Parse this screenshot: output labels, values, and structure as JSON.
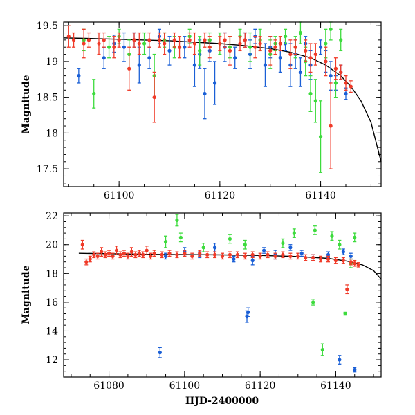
{
  "colors": {
    "blue": "#1a5fd6",
    "green": "#3ddb3d",
    "red": "#f03a28",
    "model": "#000000"
  },
  "chart_data": [
    {
      "type": "scatter",
      "panel": "top",
      "xlabel": "",
      "ylabel": "Magnitude",
      "xlim": [
        61089,
        61152
      ],
      "ylim": [
        19.55,
        17.25
      ],
      "y_inverted": true,
      "xticks": [
        61100,
        61120,
        61140
      ],
      "yticks": [
        17.5,
        18,
        18.5,
        19,
        19.5
      ],
      "model_curve": {
        "name": "model",
        "x": [
          61089,
          61095,
          61100,
          61105,
          61110,
          61115,
          61120,
          61125,
          61130,
          61134,
          61138,
          61141,
          61144,
          61146,
          61148,
          61150,
          61152
        ],
        "y": [
          19.33,
          19.32,
          19.31,
          19.3,
          19.29,
          19.27,
          19.25,
          19.22,
          19.18,
          19.13,
          19.05,
          18.95,
          18.8,
          18.65,
          18.45,
          18.15,
          17.6
        ]
      },
      "series": [
        {
          "name": "blue",
          "x": [
            61092,
            61097,
            61099,
            61101,
            61103,
            61104,
            61106,
            61108,
            61110,
            61113,
            61115,
            61116,
            61117,
            61118,
            61119,
            61121,
            61123,
            61125,
            61126,
            61127,
            61129,
            61130,
            61132,
            61133,
            61134,
            61135,
            61136,
            61137,
            61138,
            61140,
            61141,
            61142,
            61143,
            61144,
            61145
          ],
          "y": [
            18.8,
            19.05,
            19.25,
            19.2,
            19.3,
            18.95,
            19.05,
            19.35,
            19.15,
            19.2,
            18.95,
            19.1,
            18.55,
            19.15,
            18.7,
            19.2,
            19.05,
            19.3,
            19.1,
            19.35,
            18.95,
            19.2,
            19.05,
            19.25,
            18.95,
            19.1,
            18.85,
            19.25,
            18.95,
            19.2,
            19.0,
            18.8,
            18.7,
            18.85,
            18.55
          ],
          "err": [
            0.1,
            0.15,
            0.12,
            0.2,
            0.1,
            0.25,
            0.15,
            0.1,
            0.2,
            0.15,
            0.3,
            0.2,
            0.35,
            0.15,
            0.3,
            0.2,
            0.15,
            0.1,
            0.2,
            0.1,
            0.3,
            0.15,
            0.2,
            0.1,
            0.3,
            0.2,
            0.2,
            0.1,
            0.2,
            0.1,
            0.15,
            0.2,
            0.1,
            0.1,
            0.08
          ]
        },
        {
          "name": "green",
          "x": [
            61093,
            61095,
            61098,
            61100,
            61102,
            61105,
            61107,
            61109,
            61111,
            61114,
            61116,
            61118,
            61120,
            61122,
            61124,
            61126,
            61128,
            61130,
            61131,
            61133,
            61135,
            61136,
            61137,
            61138,
            61139,
            61140,
            61141,
            61142,
            61143,
            61144
          ],
          "y": [
            19.3,
            18.55,
            19.2,
            19.35,
            19.1,
            19.25,
            18.8,
            19.3,
            19.2,
            19.35,
            19.15,
            19.3,
            19.25,
            19.2,
            19.35,
            19.2,
            19.3,
            19.1,
            19.25,
            19.35,
            19.2,
            19.4,
            19.0,
            18.55,
            18.45,
            17.95,
            19.25,
            19.45,
            18.7,
            19.3
          ],
          "err": [
            0.15,
            0.2,
            0.15,
            0.1,
            0.2,
            0.15,
            0.3,
            0.1,
            0.15,
            0.1,
            0.2,
            0.1,
            0.15,
            0.15,
            0.1,
            0.2,
            0.15,
            0.2,
            0.1,
            0.1,
            0.15,
            0.15,
            0.2,
            0.25,
            0.3,
            0.5,
            0.2,
            0.15,
            0.2,
            0.15
          ]
        },
        {
          "name": "red",
          "x": [
            61090,
            61091,
            61093,
            61094,
            61096,
            61097,
            61099,
            61100,
            61102,
            61103,
            61104,
            61106,
            61107,
            61108,
            61109,
            61111,
            61112,
            61114,
            61115,
            61117,
            61118,
            61120,
            61121,
            61122,
            61124,
            61125,
            61127,
            61128,
            61130,
            61131,
            61132,
            61134,
            61135,
            61137,
            61138,
            61139,
            61141,
            61142,
            61143,
            61144,
            61145,
            61146
          ],
          "y": [
            19.35,
            19.3,
            19.25,
            19.3,
            19.25,
            19.3,
            19.2,
            19.3,
            18.9,
            19.3,
            19.25,
            19.3,
            18.5,
            19.3,
            19.25,
            19.3,
            19.2,
            19.3,
            19.25,
            19.3,
            19.2,
            19.25,
            19.3,
            19.15,
            19.25,
            19.3,
            19.2,
            19.25,
            19.15,
            19.2,
            19.25,
            19.1,
            19.2,
            19.15,
            19.05,
            19.1,
            19.0,
            18.1,
            18.9,
            18.85,
            18.7,
            18.65
          ],
          "err": [
            0.15,
            0.1,
            0.2,
            0.1,
            0.15,
            0.1,
            0.15,
            0.1,
            0.3,
            0.1,
            0.15,
            0.1,
            0.35,
            0.1,
            0.15,
            0.1,
            0.15,
            0.1,
            0.15,
            0.1,
            0.15,
            0.1,
            0.1,
            0.2,
            0.1,
            0.1,
            0.15,
            0.1,
            0.2,
            0.1,
            0.1,
            0.2,
            0.1,
            0.15,
            0.2,
            0.15,
            0.2,
            0.6,
            0.15,
            0.1,
            0.1,
            0.08
          ]
        }
      ]
    },
    {
      "type": "scatter",
      "panel": "bottom",
      "xlabel": "HJD-2400000",
      "ylabel": "Magnitude",
      "xlim": [
        61068,
        61152
      ],
      "ylim": [
        22.2,
        10.8
      ],
      "y_inverted": true,
      "xticks": [
        61080,
        61100,
        61120,
        61140
      ],
      "yticks": [
        12,
        14,
        16,
        18,
        20,
        22
      ],
      "model_curve": {
        "name": "model",
        "x": [
          61072,
          61080,
          61090,
          61100,
          61110,
          61120,
          61130,
          61138,
          61143,
          61147,
          61150,
          61152
        ],
        "y": [
          19.4,
          19.37,
          19.33,
          19.31,
          19.29,
          19.25,
          19.18,
          19.05,
          18.85,
          18.6,
          18.2,
          17.6
        ]
      },
      "series": [
        {
          "name": "blue",
          "x": [
            61093.5,
            61116.5,
            61116.8,
            61141,
            61145,
            61095,
            61100,
            61104,
            61108,
            61113,
            61118,
            61121,
            61124,
            61128,
            61131,
            61134,
            61138,
            61142,
            61144
          ],
          "y": [
            12.5,
            15.0,
            15.3,
            12.0,
            11.3,
            19.2,
            19.5,
            19.3,
            19.8,
            19.0,
            18.9,
            19.6,
            19.3,
            19.8,
            19.4,
            19.1,
            19.3,
            19.5,
            19.2
          ],
          "err": [
            0.35,
            0.4,
            0.3,
            0.3,
            0.15,
            0.2,
            0.3,
            0.2,
            0.3,
            0.2,
            0.3,
            0.2,
            0.3,
            0.2,
            0.2,
            0.2,
            0.2,
            0.2,
            0.2
          ]
        },
        {
          "name": "green",
          "x": [
            61095,
            61098,
            61099,
            61105,
            61112,
            61116,
            61126,
            61129,
            61134,
            61134.5,
            61136.5,
            61139,
            61141,
            61142.5,
            61144,
            61145
          ],
          "y": [
            20.2,
            21.7,
            20.5,
            19.8,
            20.4,
            20.0,
            20.1,
            20.8,
            16.0,
            21.0,
            12.7,
            20.6,
            20.0,
            15.2,
            18.7,
            20.5
          ],
          "err": [
            0.4,
            0.4,
            0.3,
            0.3,
            0.3,
            0.3,
            0.3,
            0.3,
            0.2,
            0.3,
            0.4,
            0.3,
            0.3,
            0.1,
            0.3,
            0.3
          ]
        },
        {
          "name": "red",
          "x": [
            61073,
            61074,
            61075,
            61076,
            61077,
            61078,
            61079,
            61080,
            61081,
            61082,
            61083,
            61084,
            61085,
            61086,
            61087,
            61088,
            61089,
            61090,
            61091,
            61092,
            61094,
            61096,
            61098,
            61100,
            61102,
            61104,
            61106,
            61108,
            61110,
            61112,
            61114,
            61116,
            61118,
            61120,
            61122,
            61124,
            61126,
            61128,
            61130,
            61132,
            61134,
            61136,
            61138,
            61140,
            61142,
            61143,
            61144,
            61145,
            61146
          ],
          "y": [
            20.0,
            18.8,
            19.0,
            19.3,
            19.2,
            19.5,
            19.3,
            19.4,
            19.2,
            19.6,
            19.3,
            19.4,
            19.2,
            19.5,
            19.3,
            19.4,
            19.3,
            19.6,
            19.2,
            19.4,
            19.3,
            19.4,
            19.3,
            19.4,
            19.2,
            19.4,
            19.3,
            19.3,
            19.2,
            19.3,
            19.3,
            19.2,
            19.3,
            19.2,
            19.3,
            19.2,
            19.3,
            19.2,
            19.2,
            19.1,
            19.1,
            19.0,
            19.0,
            18.9,
            18.9,
            16.9,
            18.8,
            18.7,
            18.6
          ],
          "err": [
            0.3,
            0.2,
            0.2,
            0.2,
            0.2,
            0.3,
            0.2,
            0.2,
            0.2,
            0.3,
            0.2,
            0.2,
            0.2,
            0.3,
            0.2,
            0.2,
            0.2,
            0.3,
            0.2,
            0.2,
            0.2,
            0.2,
            0.2,
            0.2,
            0.2,
            0.2,
            0.2,
            0.2,
            0.2,
            0.2,
            0.2,
            0.2,
            0.2,
            0.2,
            0.2,
            0.2,
            0.2,
            0.2,
            0.2,
            0.2,
            0.2,
            0.2,
            0.2,
            0.2,
            0.2,
            0.3,
            0.2,
            0.2,
            0.15
          ]
        }
      ]
    }
  ]
}
